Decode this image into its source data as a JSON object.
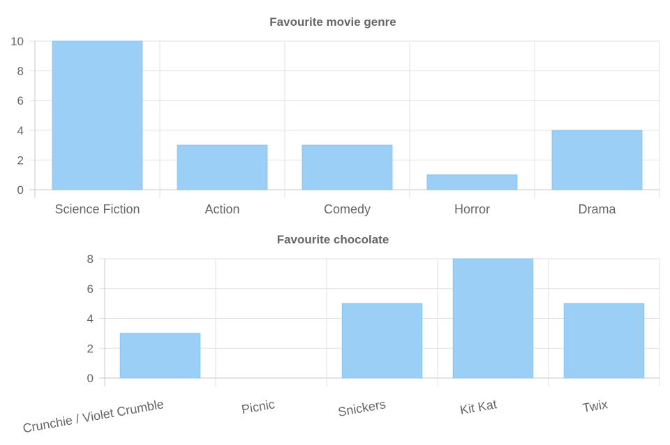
{
  "colors": {
    "bar_fill": "#9ccff5",
    "bar_stroke": "#8ac3ef",
    "grid": "#e1e1e1",
    "axis": "#c9c9c9",
    "text": "#666666"
  },
  "chart_data": [
    {
      "type": "bar",
      "title": "Favourite movie genre",
      "categories": [
        "Science Fiction",
        "Action",
        "Comedy",
        "Horror",
        "Drama"
      ],
      "values": [
        10,
        3,
        3,
        1,
        4
      ],
      "ylim": [
        0,
        10
      ],
      "yticks": [
        0,
        2,
        4,
        6,
        8,
        10
      ],
      "xlabel": "",
      "ylabel": "",
      "grid": true,
      "legend": "none"
    },
    {
      "type": "bar",
      "title": "Favourite chocolate",
      "categories": [
        "Crunchie / Violet Crumble",
        "Picnic",
        "Snickers",
        "Kit Kat",
        "Twix"
      ],
      "values": [
        3,
        0,
        5,
        8,
        5
      ],
      "ylim": [
        0,
        8
      ],
      "yticks": [
        0,
        2,
        4,
        6,
        8
      ],
      "xlabel": "",
      "ylabel": "",
      "grid": true,
      "legend": "none",
      "x_tick_rotation": "tilted"
    }
  ]
}
